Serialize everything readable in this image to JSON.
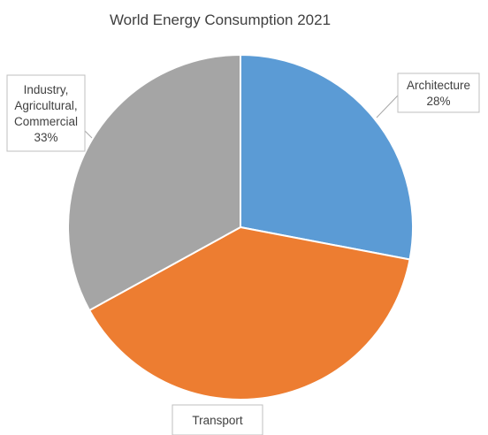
{
  "chart_data": {
    "type": "pie",
    "title": "World Energy Consumption 2021",
    "slices": [
      {
        "label": "Architecture",
        "value": 28,
        "value_label": "28%",
        "color": "#5B9BD5"
      },
      {
        "label": "Transport",
        "value": 39,
        "value_label": "",
        "color": "#ED7D31"
      },
      {
        "label": "Industry, Agricultural, Commercial",
        "value": 33,
        "value_label": "33%",
        "color": "#A5A5A5"
      }
    ],
    "start": "12 o'clock",
    "direction": "clockwise",
    "legend": "none",
    "data_labels": "callouts outside slices"
  }
}
